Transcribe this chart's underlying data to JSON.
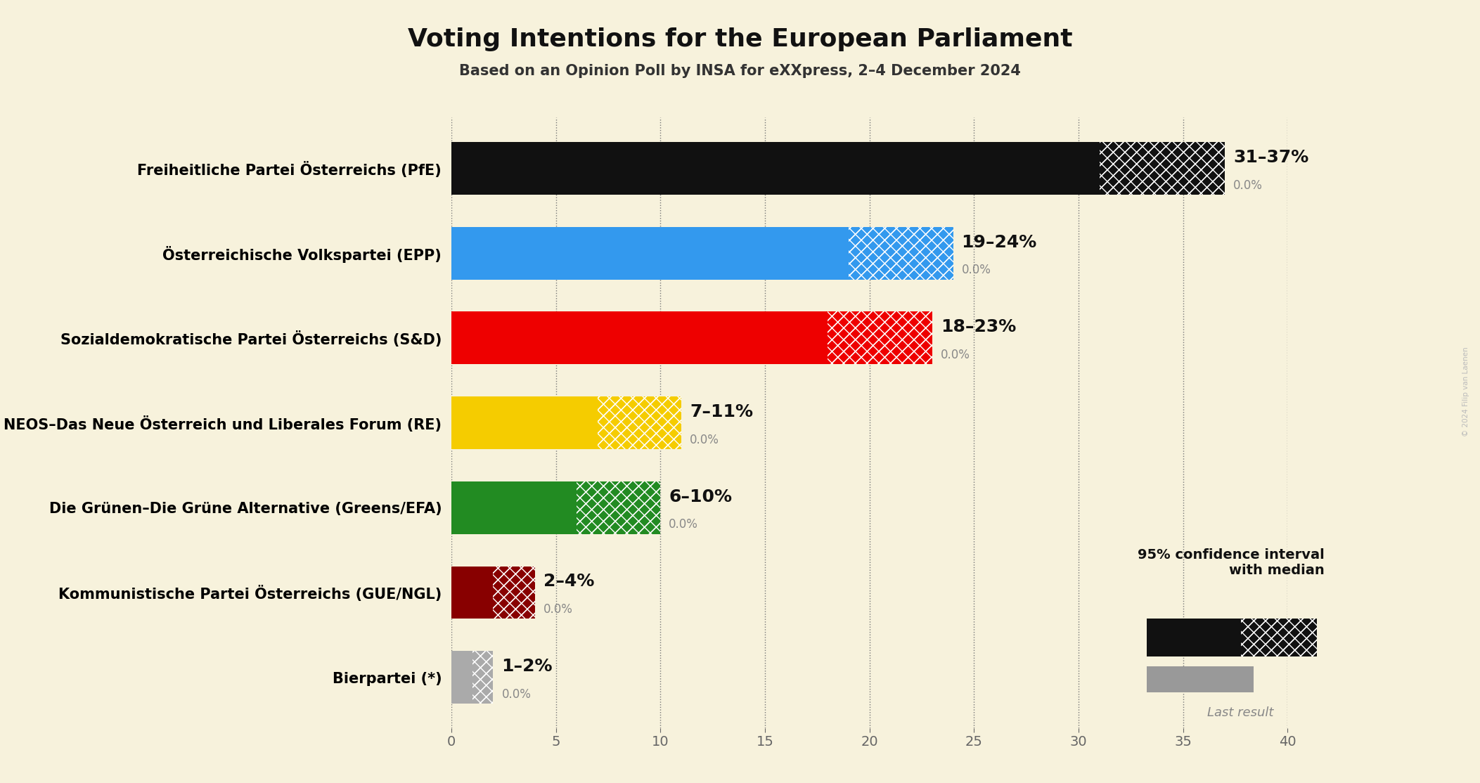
{
  "title": "Voting Intentions for the European Parliament",
  "subtitle": "Based on an Opinion Poll by INSA for eXXpress, 2–4 December 2024",
  "background_color": "#f7f2dc",
  "parties": [
    "Freiheitliche Partei Österreichs (PfE)",
    "Österreichische Volkspartei (EPP)",
    "Sozialdemokratische Partei Österreichs (S&D)",
    "NEOS–Das Neue Österreich und Liberales Forum (RE)",
    "Die Grünen–Die Grüne Alternative (Greens/EFA)",
    "Kommunistische Partei Österreichs (GUE/NGL)",
    "Bierpartei (*)"
  ],
  "low": [
    31,
    19,
    18,
    7,
    6,
    2,
    1
  ],
  "high": [
    37,
    24,
    23,
    11,
    10,
    4,
    2
  ],
  "labels": [
    "31–37%",
    "19–24%",
    "18–23%",
    "7–11%",
    "6–10%",
    "2–4%",
    "1–2%"
  ],
  "colors": [
    "#111111",
    "#3399ee",
    "#ee0000",
    "#f5cc00",
    "#228B22",
    "#880000",
    "#aaaaaa"
  ],
  "xlim": [
    0,
    40
  ],
  "xticks": [
    0,
    5,
    10,
    15,
    20,
    25,
    30,
    35,
    40
  ],
  "title_fontsize": 26,
  "subtitle_fontsize": 15,
  "label_fontsize": 18,
  "tick_fontsize": 14,
  "party_fontsize": 15,
  "watermark": "© 2024 Filip van Laenen"
}
